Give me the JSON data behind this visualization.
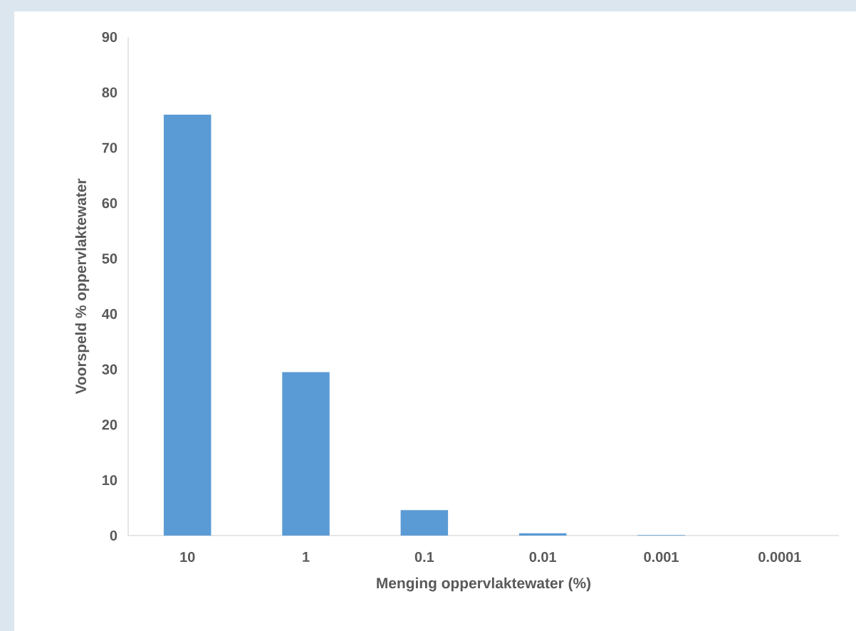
{
  "chart_data": {
    "type": "bar",
    "xlabel": "Menging oppervlaktewater (%)",
    "ylabel": "Voorspeld % oppervlaktewater",
    "categories": [
      "10",
      "1",
      "0.1",
      "0.01",
      "0.001",
      "0.0001"
    ],
    "values": [
      76,
      29.5,
      4.6,
      0.4,
      0.1,
      0
    ],
    "color": "#5b9bd5",
    "ylim": [
      0,
      90
    ],
    "yticks": [
      0,
      10,
      20,
      30,
      40,
      50,
      60,
      70,
      80,
      90
    ],
    "grid": false
  }
}
